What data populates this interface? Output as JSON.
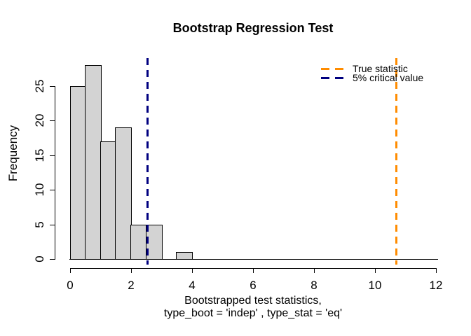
{
  "chart_data": {
    "type": "bar",
    "subtype": "histogram",
    "title": "Bootstrap Regression Test",
    "ylabel": "Frequency",
    "xlabel_line1": "Bootstrapped test statistics,",
    "xlabel_line2": "type_boot = 'indep' , type_stat = 'eq'",
    "breaks": [
      0,
      0.5,
      1,
      1.5,
      2,
      2.5,
      3,
      3.5,
      4
    ],
    "counts": [
      25,
      28,
      17,
      19,
      5,
      5,
      0,
      1
    ],
    "x_ticks": [
      0,
      2,
      4,
      6,
      8,
      10,
      12
    ],
    "y_ticks": [
      0,
      5,
      10,
      15,
      20,
      25
    ],
    "xlim": [
      0,
      12.05
    ],
    "ylim": [
      0,
      28
    ],
    "grid": false,
    "bar_fill": "#D3D3D3",
    "bar_border": "#000000",
    "vlines": [
      {
        "name": "true-statistic",
        "x": 10.7,
        "color": "#FF8C00",
        "style": "dashed"
      },
      {
        "name": "critical-value-5pct",
        "x": 2.53,
        "color": "#000080",
        "style": "dashed"
      }
    ],
    "legend": {
      "position": "top-right",
      "items": [
        {
          "label": "True statistic",
          "color": "#FF8C00",
          "line_style": "dashed"
        },
        {
          "label": "5% critical value",
          "color": "#000080",
          "line_style": "dashed"
        }
      ]
    }
  }
}
